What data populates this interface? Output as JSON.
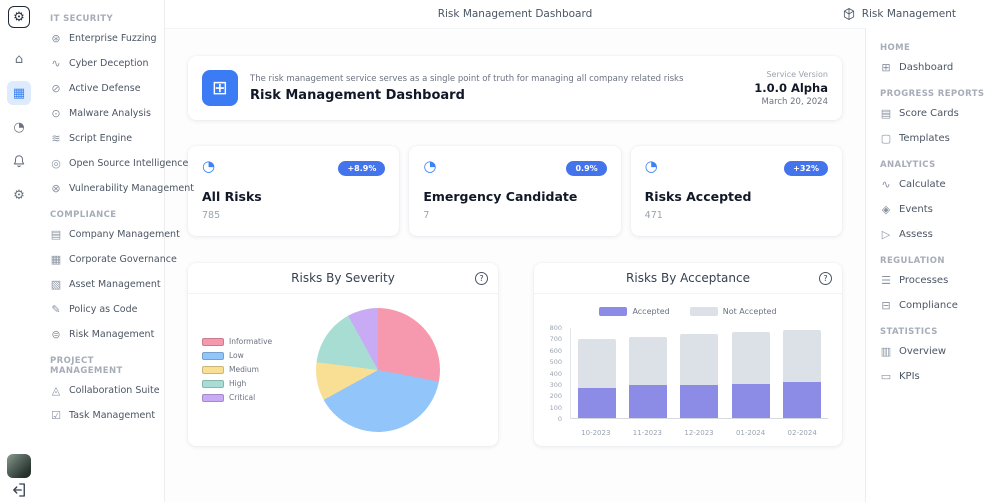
{
  "header": {
    "title": "Risk Management Dashboard",
    "account_label": "Risk Management"
  },
  "rail": {
    "logo_glyph": "⚙",
    "home_glyph": "⌂",
    "apps_glyph": "▦",
    "gauge_glyph": "◔",
    "gear_glyph": "⚙"
  },
  "left_sidebar": {
    "sections": [
      {
        "title": "IT SECURITY",
        "items": [
          {
            "label": "Enterprise Fuzzing",
            "icon": "fuzzing-icon",
            "glyph": "⊛"
          },
          {
            "label": "Cyber Deception",
            "icon": "deception-icon",
            "glyph": "∿"
          },
          {
            "label": "Active Defense",
            "icon": "defense-icon",
            "glyph": "⊘"
          },
          {
            "label": "Malware Analysis",
            "icon": "malware-icon",
            "glyph": "⊙"
          },
          {
            "label": "Script Engine",
            "icon": "script-icon",
            "glyph": "≋"
          },
          {
            "label": "Open Source Intelligence",
            "icon": "osint-icon",
            "glyph": "◎"
          },
          {
            "label": "Vulnerability Management",
            "icon": "vulnerability-icon",
            "glyph": "⊗"
          }
        ]
      },
      {
        "title": "COMPLIANCE",
        "items": [
          {
            "label": "Company Management",
            "icon": "company-icon",
            "glyph": "▤"
          },
          {
            "label": "Corporate Governance",
            "icon": "governance-icon",
            "glyph": "▦"
          },
          {
            "label": "Asset Management",
            "icon": "asset-icon",
            "glyph": "▧"
          },
          {
            "label": "Policy as Code",
            "icon": "policy-icon",
            "glyph": "✎"
          },
          {
            "label": "Risk Management",
            "icon": "risk-icon",
            "glyph": "⊜"
          }
        ]
      },
      {
        "title": "PROJECT MANAGEMENT",
        "items": [
          {
            "label": "Collaboration Suite",
            "icon": "collaboration-icon",
            "glyph": "◬"
          },
          {
            "label": "Task Management",
            "icon": "task-icon",
            "glyph": "☑"
          }
        ]
      }
    ]
  },
  "right_sidebar": {
    "sections": [
      {
        "title": "HOME",
        "items": [
          {
            "label": "Dashboard",
            "icon": "dashboard-icon",
            "glyph": "⊞"
          }
        ]
      },
      {
        "title": "PROGRESS REPORTS",
        "items": [
          {
            "label": "Score Cards",
            "icon": "scorecards-icon",
            "glyph": "▤"
          },
          {
            "label": "Templates",
            "icon": "templates-icon",
            "glyph": "▢"
          }
        ]
      },
      {
        "title": "ANALYTICS",
        "items": [
          {
            "label": "Calculate",
            "icon": "calculate-icon",
            "glyph": "∿"
          },
          {
            "label": "Events",
            "icon": "events-icon",
            "glyph": "◈"
          },
          {
            "label": "Assess",
            "icon": "assess-icon",
            "glyph": "▷"
          }
        ]
      },
      {
        "title": "REGULATION",
        "items": [
          {
            "label": "Processes",
            "icon": "processes-icon",
            "glyph": "☰"
          },
          {
            "label": "Compliance",
            "icon": "compliance-icon",
            "glyph": "⊟"
          }
        ]
      },
      {
        "title": "STATISTICS",
        "items": [
          {
            "label": "Overview",
            "icon": "overview-icon",
            "glyph": "▥"
          },
          {
            "label": "KPIs",
            "icon": "kpis-icon",
            "glyph": "▭"
          }
        ]
      }
    ]
  },
  "banner": {
    "description": "The risk management service serves as a single point of truth for managing all company related risks",
    "title": "Risk Management Dashboard",
    "icon_glyph": "⊞",
    "version_label": "Service Version",
    "version": "1.0.0 Alpha",
    "date": "March 20, 2024"
  },
  "stat_cards": [
    {
      "title": "All Risks",
      "value": "785",
      "badge": "+8.9%",
      "icon_glyph": "◔"
    },
    {
      "title": "Emergency Candidate",
      "value": "7",
      "badge": "0.9%",
      "icon_glyph": "◔"
    },
    {
      "title": "Risks Accepted",
      "value": "471",
      "badge": "+32%",
      "icon_glyph": "◔"
    }
  ],
  "chart_data": [
    {
      "type": "pie",
      "title": "Risks By Severity",
      "labels": [
        "Informative",
        "Low",
        "Medium",
        "High",
        "Critical"
      ],
      "values": [
        28,
        39,
        10,
        15,
        8
      ],
      "colors": [
        "#f799ae",
        "#92c5f9",
        "#f9df94",
        "#a8ddd3",
        "#c9aaf4"
      ],
      "legend_position": "left"
    },
    {
      "type": "bar",
      "stacked": true,
      "title": "Risks By Acceptance",
      "categories": [
        "10-2023",
        "11-2023",
        "12-2023",
        "01-2024",
        "02-2024"
      ],
      "series": [
        {
          "name": "Accepted",
          "color": "#8c8ce6",
          "values": [
            270,
            290,
            295,
            300,
            320
          ]
        },
        {
          "name": "Not Accepted",
          "color": "#dce1e8",
          "values": [
            430,
            430,
            450,
            465,
            465
          ]
        }
      ],
      "ylim": [
        0,
        800
      ],
      "yticks": [
        0,
        100,
        200,
        300,
        400,
        500,
        600,
        700,
        800
      ],
      "legend_position": "top",
      "grid": false
    }
  ],
  "colors": {
    "accent": "#3b82f6",
    "badge": "#4374ec",
    "banner_icon_bg": "#3b7cf5"
  }
}
